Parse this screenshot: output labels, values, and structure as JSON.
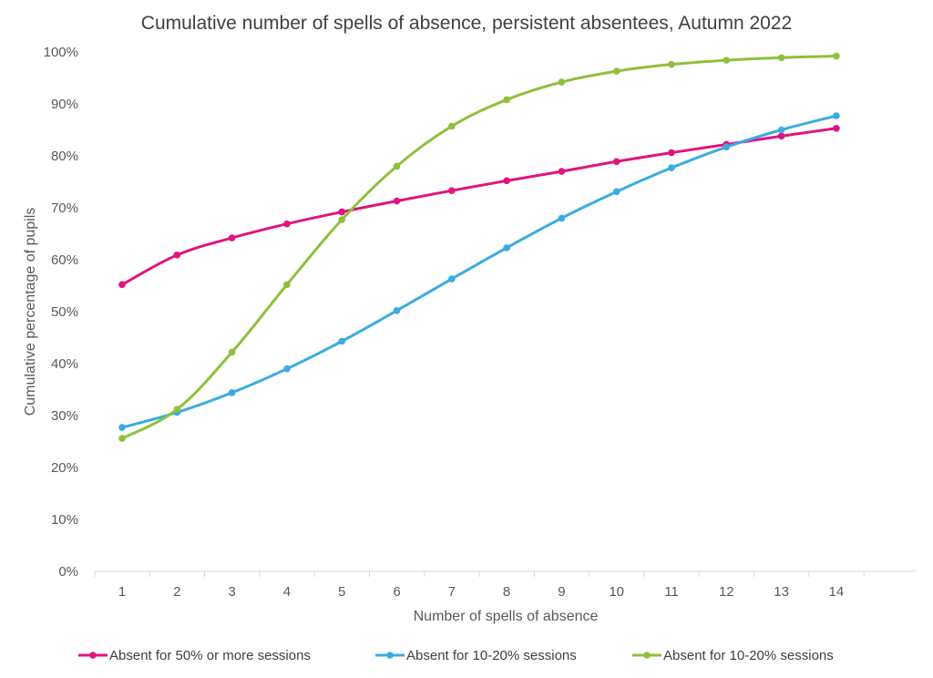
{
  "chart_data": {
    "type": "line",
    "title": "Cumulative number of spells of absence, persistent absentees, Autumn 2022",
    "xlabel": "Number of spells of absence",
    "ylabel": "Cumulative percentage of pupils",
    "x": [
      1,
      2,
      3,
      4,
      5,
      6,
      7,
      8,
      9,
      10,
      11,
      12,
      13,
      14
    ],
    "x_tick_labels": [
      "1",
      "2",
      "3",
      "4",
      "5",
      "6",
      "7",
      "8",
      "9",
      "10",
      "11",
      "12",
      "13",
      "14"
    ],
    "ylim": [
      0,
      100
    ],
    "y_ticks": [
      0,
      10,
      20,
      30,
      40,
      50,
      60,
      70,
      80,
      90,
      100
    ],
    "y_tick_labels": [
      "0%",
      "10%",
      "20%",
      "30%",
      "40%",
      "50%",
      "60%",
      "70%",
      "80%",
      "90%",
      "100%"
    ],
    "grid": false,
    "legend": "bottom",
    "series": [
      {
        "name": "Absent for 50% or more sessions",
        "color": "#e0157f",
        "values": [
          55.2,
          60.9,
          64.2,
          66.9,
          69.2,
          71.3,
          73.3,
          75.2,
          77.0,
          78.9,
          80.6,
          82.2,
          83.8,
          85.3
        ]
      },
      {
        "name": "Absent for 10-20% sessions",
        "color": "#3aace1",
        "values": [
          27.7,
          30.6,
          34.4,
          39.0,
          44.3,
          50.2,
          56.3,
          62.3,
          68.0,
          73.1,
          77.7,
          81.7,
          85.0,
          87.7
        ]
      },
      {
        "name": "Absent for 10-20% sessions",
        "color": "#8fc03c",
        "values": [
          25.6,
          31.2,
          42.2,
          55.2,
          67.7,
          78.0,
          85.7,
          90.8,
          94.2,
          96.3,
          97.6,
          98.4,
          98.9,
          99.2
        ]
      }
    ]
  }
}
